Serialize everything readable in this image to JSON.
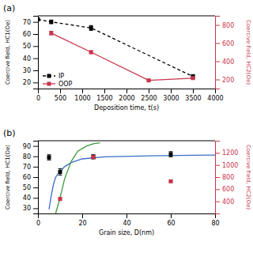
{
  "chart_data": [
    {
      "type": "line",
      "xlabel": "Deposition time, t(s)",
      "ylabel": "Coercive field, HC1(Oe)",
      "y2label": "Coercive field, HC2(Oe)",
      "annotations": [
        "(a)"
      ],
      "xlim": [
        0,
        4000
      ],
      "xticks": [
        0,
        500,
        1000,
        1500,
        2000,
        2500,
        3000,
        3500,
        4000
      ],
      "ylim": [
        15,
        75
      ],
      "yticks": [
        20,
        30,
        40,
        50,
        60,
        70
      ],
      "y2lim": [
        100,
        900
      ],
      "y2ticks": [
        200,
        400,
        600,
        800
      ],
      "legend": "lower left",
      "series": [
        {
          "name": "IP",
          "color": "#000000",
          "line_style": "dashed",
          "marker": "square",
          "x": [
            0,
            300,
            1200,
            3500
          ],
          "values": [
            72,
            70,
            65,
            25
          ],
          "errors": [
            0,
            1.5,
            2,
            1.5
          ]
        },
        {
          "name": "OOP",
          "color": "#c8344a",
          "line_style": "solid",
          "marker": "square",
          "axis": "y2",
          "x": [
            300,
            1200,
            2500,
            3500
          ],
          "values": [
            710,
            500,
            190,
            215
          ],
          "errors": [
            20,
            15,
            10,
            10
          ]
        }
      ]
    },
    {
      "type": "line",
      "xlabel": "Grain size, D(nm)",
      "ylabel": "Coercive field, HC1(Oe)",
      "y2label": "Coercive field, HC2(Oe)",
      "annotations": [
        "(b)"
      ],
      "xlim": [
        0,
        80
      ],
      "xticks": [
        0,
        20,
        40,
        60,
        80
      ],
      "ylim": [
        25,
        95
      ],
      "yticks": [
        30,
        40,
        50,
        60,
        70,
        80,
        90
      ],
      "y2lim": [
        200,
        1400
      ],
      "y2ticks": [
        400,
        600,
        800,
        1000,
        1200
      ],
      "series": [
        {
          "type": "line",
          "color": "#3a6cc8",
          "line_style": "solid",
          "x": [
            5,
            6,
            7,
            8,
            9,
            10,
            12,
            15,
            20,
            30,
            50,
            70,
            80
          ],
          "values": [
            29,
            42,
            53,
            60,
            63,
            65,
            70,
            74,
            77.5,
            79.5,
            80.5,
            81,
            81.2
          ]
        },
        {
          "type": "line",
          "color": "#3a9a3a",
          "line_style": "solid",
          "x": [
            8,
            10,
            12,
            15,
            18,
            22,
            25,
            28
          ],
          "values": [
            25,
            40,
            58,
            75,
            85,
            90,
            92,
            93
          ]
        },
        {
          "type": "scatter",
          "color": "#000000",
          "marker": "square",
          "x": [
            5,
            10,
            25,
            60
          ],
          "values": [
            79,
            65,
            79.5,
            82
          ],
          "errors": [
            2.5,
            3,
            2,
            2.5
          ]
        },
        {
          "type": "scatter",
          "color": "#c8344a",
          "marker": "square",
          "axis": "y2",
          "x": [
            10,
            25,
            60
          ],
          "values": [
            440,
            1130,
            730
          ],
          "errors": [
            20,
            25,
            15
          ]
        }
      ]
    }
  ]
}
